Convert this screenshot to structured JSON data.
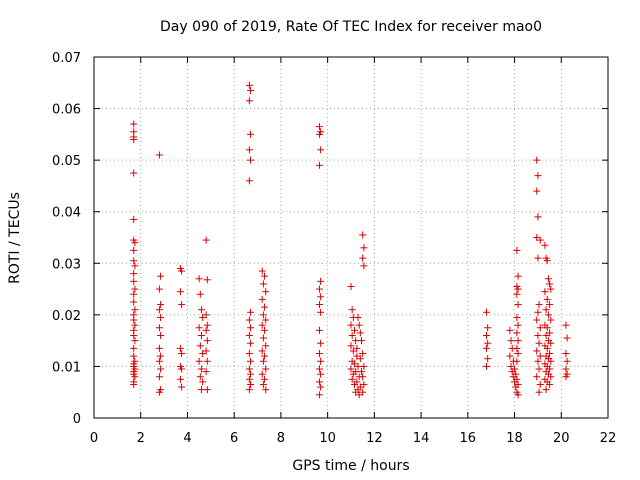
{
  "chart_data": {
    "type": "scatter",
    "title": "Day 090 of 2019, Rate Of TEC Index for receiver mao0",
    "xlabel": "GPS time / hours",
    "ylabel": "ROTI / TECUs",
    "xlim": [
      0,
      22
    ],
    "ylim": [
      0,
      0.07
    ],
    "xticks": [
      0,
      2,
      4,
      6,
      8,
      10,
      12,
      14,
      16,
      18,
      20,
      22
    ],
    "yticks": [
      0,
      0.01,
      0.02,
      0.03,
      0.04,
      0.05,
      0.06,
      0.07
    ],
    "xtick_labels": [
      "0",
      "2",
      "4",
      "6",
      "8",
      "10",
      "12",
      "14",
      "16",
      "18",
      "20",
      "22"
    ],
    "ytick_labels": [
      "0",
      "0.01",
      "0.02",
      "0.03",
      "0.04",
      "0.05",
      "0.06",
      "0.07"
    ],
    "grid": true,
    "marker": "plus",
    "color": "#dd0000",
    "series": [
      {
        "name": "ROTI",
        "points": [
          [
            1.7,
            0.057
          ],
          [
            1.7,
            0.0555
          ],
          [
            1.7,
            0.0545
          ],
          [
            1.7,
            0.054
          ],
          [
            1.7,
            0.0475
          ],
          [
            1.7,
            0.0385
          ],
          [
            1.7,
            0.0345
          ],
          [
            1.75,
            0.034
          ],
          [
            1.7,
            0.0325
          ],
          [
            1.7,
            0.0305
          ],
          [
            1.75,
            0.0295
          ],
          [
            1.7,
            0.028
          ],
          [
            1.7,
            0.0265
          ],
          [
            1.75,
            0.025
          ],
          [
            1.7,
            0.024
          ],
          [
            1.7,
            0.0225
          ],
          [
            1.75,
            0.021
          ],
          [
            1.7,
            0.02
          ],
          [
            1.7,
            0.019
          ],
          [
            1.75,
            0.018
          ],
          [
            1.7,
            0.017
          ],
          [
            1.7,
            0.016
          ],
          [
            1.75,
            0.015
          ],
          [
            1.7,
            0.0135
          ],
          [
            1.7,
            0.012
          ],
          [
            1.75,
            0.011
          ],
          [
            1.7,
            0.0105
          ],
          [
            1.7,
            0.01
          ],
          [
            1.75,
            0.0095
          ],
          [
            1.7,
            0.009
          ],
          [
            1.7,
            0.0085
          ],
          [
            1.75,
            0.008
          ],
          [
            1.7,
            0.007
          ],
          [
            1.7,
            0.0065
          ],
          [
            2.8,
            0.051
          ],
          [
            2.85,
            0.0275
          ],
          [
            2.8,
            0.025
          ],
          [
            2.85,
            0.022
          ],
          [
            2.8,
            0.021
          ],
          [
            2.85,
            0.0195
          ],
          [
            2.8,
            0.0175
          ],
          [
            2.85,
            0.016
          ],
          [
            2.8,
            0.0135
          ],
          [
            2.85,
            0.012
          ],
          [
            2.8,
            0.011
          ],
          [
            2.85,
            0.0095
          ],
          [
            2.8,
            0.008
          ],
          [
            2.85,
            0.0055
          ],
          [
            2.8,
            0.005
          ],
          [
            3.7,
            0.029
          ],
          [
            3.75,
            0.0285
          ],
          [
            3.7,
            0.0245
          ],
          [
            3.75,
            0.022
          ],
          [
            3.7,
            0.0135
          ],
          [
            3.75,
            0.0125
          ],
          [
            3.7,
            0.01
          ],
          [
            3.75,
            0.0095
          ],
          [
            3.7,
            0.0075
          ],
          [
            3.75,
            0.006
          ],
          [
            4.5,
            0.027
          ],
          [
            4.55,
            0.024
          ],
          [
            4.6,
            0.021
          ],
          [
            4.65,
            0.0195
          ],
          [
            4.5,
            0.0175
          ],
          [
            4.6,
            0.016
          ],
          [
            4.55,
            0.014
          ],
          [
            4.65,
            0.0125
          ],
          [
            4.5,
            0.011
          ],
          [
            4.6,
            0.0095
          ],
          [
            4.55,
            0.008
          ],
          [
            4.65,
            0.007
          ],
          [
            4.6,
            0.0055
          ],
          [
            4.8,
            0.0345
          ],
          [
            4.85,
            0.0268
          ],
          [
            4.8,
            0.02
          ],
          [
            4.85,
            0.018
          ],
          [
            4.8,
            0.017
          ],
          [
            4.85,
            0.015
          ],
          [
            4.8,
            0.013
          ],
          [
            4.85,
            0.011
          ],
          [
            4.8,
            0.009
          ],
          [
            4.85,
            0.0055
          ],
          [
            6.65,
            0.0645
          ],
          [
            6.7,
            0.0635
          ],
          [
            6.65,
            0.0615
          ],
          [
            6.7,
            0.055
          ],
          [
            6.65,
            0.052
          ],
          [
            6.7,
            0.05
          ],
          [
            6.65,
            0.046
          ],
          [
            6.7,
            0.0205
          ],
          [
            6.65,
            0.019
          ],
          [
            6.7,
            0.0175
          ],
          [
            6.65,
            0.016
          ],
          [
            6.7,
            0.0145
          ],
          [
            6.65,
            0.0125
          ],
          [
            6.7,
            0.011
          ],
          [
            6.65,
            0.0095
          ],
          [
            6.7,
            0.0085
          ],
          [
            6.65,
            0.0075
          ],
          [
            6.7,
            0.0065
          ],
          [
            6.65,
            0.0055
          ],
          [
            7.2,
            0.0285
          ],
          [
            7.3,
            0.0275
          ],
          [
            7.25,
            0.026
          ],
          [
            7.35,
            0.0245
          ],
          [
            7.2,
            0.023
          ],
          [
            7.3,
            0.0215
          ],
          [
            7.25,
            0.02
          ],
          [
            7.35,
            0.019
          ],
          [
            7.2,
            0.018
          ],
          [
            7.3,
            0.017
          ],
          [
            7.25,
            0.0155
          ],
          [
            7.35,
            0.014
          ],
          [
            7.2,
            0.013
          ],
          [
            7.3,
            0.012
          ],
          [
            7.25,
            0.011
          ],
          [
            7.35,
            0.0095
          ],
          [
            7.2,
            0.0085
          ],
          [
            7.3,
            0.0075
          ],
          [
            7.25,
            0.0065
          ],
          [
            7.35,
            0.0055
          ],
          [
            9.65,
            0.0565
          ],
          [
            9.7,
            0.0555
          ],
          [
            9.65,
            0.055
          ],
          [
            9.7,
            0.052
          ],
          [
            9.65,
            0.049
          ],
          [
            9.7,
            0.0265
          ],
          [
            9.65,
            0.025
          ],
          [
            9.7,
            0.0235
          ],
          [
            9.65,
            0.022
          ],
          [
            9.7,
            0.0205
          ],
          [
            9.65,
            0.017
          ],
          [
            9.7,
            0.0145
          ],
          [
            9.65,
            0.0125
          ],
          [
            9.7,
            0.011
          ],
          [
            9.65,
            0.0095
          ],
          [
            9.7,
            0.0085
          ],
          [
            9.65,
            0.007
          ],
          [
            9.7,
            0.006
          ],
          [
            9.65,
            0.0045
          ],
          [
            11.0,
            0.0255
          ],
          [
            11.05,
            0.021
          ],
          [
            11.1,
            0.0195
          ],
          [
            11.0,
            0.018
          ],
          [
            11.15,
            0.017
          ],
          [
            11.05,
            0.016
          ],
          [
            11.2,
            0.015
          ],
          [
            11.0,
            0.014
          ],
          [
            11.1,
            0.013
          ],
          [
            11.25,
            0.012
          ],
          [
            11.05,
            0.011
          ],
          [
            11.15,
            0.0105
          ],
          [
            11.3,
            0.01
          ],
          [
            11.0,
            0.0095
          ],
          [
            11.2,
            0.009
          ],
          [
            11.1,
            0.0085
          ],
          [
            11.35,
            0.008
          ],
          [
            11.05,
            0.0075
          ],
          [
            11.25,
            0.007
          ],
          [
            11.15,
            0.0065
          ],
          [
            11.4,
            0.006
          ],
          [
            11.3,
            0.0055
          ],
          [
            11.2,
            0.005
          ],
          [
            11.35,
            0.0045
          ],
          [
            11.3,
            0.0195
          ],
          [
            11.35,
            0.018
          ],
          [
            11.4,
            0.0165
          ],
          [
            11.45,
            0.015
          ],
          [
            11.25,
            0.0135
          ],
          [
            11.5,
            0.0125
          ],
          [
            11.4,
            0.0115
          ],
          [
            11.55,
            0.01
          ],
          [
            11.45,
            0.009
          ],
          [
            11.5,
            0.008
          ],
          [
            11.55,
            0.0065
          ],
          [
            11.5,
            0.005
          ],
          [
            11.5,
            0.0355
          ],
          [
            11.55,
            0.033
          ],
          [
            11.5,
            0.031
          ],
          [
            11.55,
            0.0295
          ],
          [
            16.8,
            0.0205
          ],
          [
            16.85,
            0.0175
          ],
          [
            16.8,
            0.016
          ],
          [
            16.85,
            0.0145
          ],
          [
            16.8,
            0.0135
          ],
          [
            16.85,
            0.0115
          ],
          [
            16.8,
            0.01
          ],
          [
            17.8,
            0.017
          ],
          [
            17.85,
            0.015
          ],
          [
            17.9,
            0.0135
          ],
          [
            17.8,
            0.012
          ],
          [
            17.95,
            0.011
          ],
          [
            17.85,
            0.01
          ],
          [
            18.0,
            0.0095
          ],
          [
            17.9,
            0.009
          ],
          [
            18.05,
            0.0085
          ],
          [
            17.95,
            0.008
          ],
          [
            18.1,
            0.0075
          ],
          [
            18.0,
            0.007
          ],
          [
            18.15,
            0.0065
          ],
          [
            18.05,
            0.006
          ],
          [
            18.1,
            0.005
          ],
          [
            18.15,
            0.0045
          ],
          [
            18.1,
            0.0325
          ],
          [
            18.15,
            0.0275
          ],
          [
            18.1,
            0.0255
          ],
          [
            18.15,
            0.025
          ],
          [
            18.1,
            0.024
          ],
          [
            18.15,
            0.022
          ],
          [
            18.1,
            0.0195
          ],
          [
            18.15,
            0.018
          ],
          [
            18.1,
            0.0165
          ],
          [
            18.15,
            0.015
          ],
          [
            18.1,
            0.0135
          ],
          [
            18.15,
            0.0125
          ],
          [
            18.1,
            0.011
          ],
          [
            18.95,
            0.05
          ],
          [
            19.0,
            0.047
          ],
          [
            18.95,
            0.044
          ],
          [
            19.0,
            0.039
          ],
          [
            18.95,
            0.035
          ],
          [
            19.1,
            0.0345
          ],
          [
            19.0,
            0.031
          ],
          [
            19.05,
            0.022
          ],
          [
            19.0,
            0.0205
          ],
          [
            18.95,
            0.019
          ],
          [
            19.1,
            0.0175
          ],
          [
            19.0,
            0.016
          ],
          [
            19.05,
            0.0145
          ],
          [
            18.95,
            0.013
          ],
          [
            19.1,
            0.012
          ],
          [
            19.0,
            0.011
          ],
          [
            19.05,
            0.0095
          ],
          [
            18.95,
            0.008
          ],
          [
            19.1,
            0.0065
          ],
          [
            19.05,
            0.005
          ],
          [
            19.3,
            0.0335
          ],
          [
            19.35,
            0.031
          ],
          [
            19.4,
            0.0305
          ],
          [
            19.45,
            0.027
          ],
          [
            19.5,
            0.026
          ],
          [
            19.55,
            0.025
          ],
          [
            19.3,
            0.0245
          ],
          [
            19.4,
            0.023
          ],
          [
            19.5,
            0.022
          ],
          [
            19.35,
            0.021
          ],
          [
            19.45,
            0.02
          ],
          [
            19.55,
            0.019
          ],
          [
            19.3,
            0.018
          ],
          [
            19.4,
            0.0175
          ],
          [
            19.5,
            0.0165
          ],
          [
            19.35,
            0.016
          ],
          [
            19.45,
            0.015
          ],
          [
            19.55,
            0.0145
          ],
          [
            19.3,
            0.014
          ],
          [
            19.4,
            0.0135
          ],
          [
            19.5,
            0.0125
          ],
          [
            19.35,
            0.012
          ],
          [
            19.45,
            0.0115
          ],
          [
            19.55,
            0.011
          ],
          [
            19.3,
            0.0105
          ],
          [
            19.4,
            0.01
          ],
          [
            19.5,
            0.0095
          ],
          [
            19.35,
            0.009
          ],
          [
            19.45,
            0.0085
          ],
          [
            19.55,
            0.008
          ],
          [
            19.3,
            0.0075
          ],
          [
            19.4,
            0.007
          ],
          [
            19.5,
            0.0065
          ],
          [
            19.35,
            0.0055
          ],
          [
            20.2,
            0.018
          ],
          [
            20.25,
            0.0155
          ],
          [
            20.2,
            0.0125
          ],
          [
            20.25,
            0.011
          ],
          [
            20.2,
            0.0095
          ],
          [
            20.25,
            0.0085
          ],
          [
            20.2,
            0.008
          ]
        ]
      }
    ]
  }
}
